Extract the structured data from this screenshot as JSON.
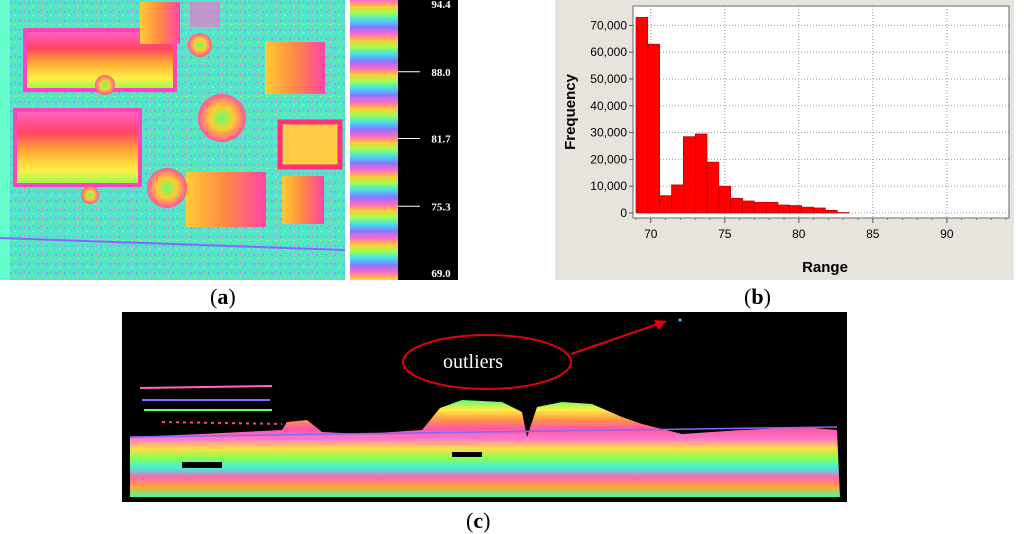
{
  "panel_a": {
    "caption_letter": "a",
    "legend_ticks": [
      "94.4",
      "88.0",
      "81.7",
      "75.3",
      "69.0"
    ],
    "legend_values": [
      94.4,
      88.0,
      81.7,
      75.3,
      69.0
    ]
  },
  "panel_b": {
    "caption_letter": "b"
  },
  "panel_c": {
    "caption_letter": "c",
    "annotation": "outliers"
  },
  "colors": {
    "bar": "#ff0000",
    "bar_stroke": "#b00000",
    "annotation": "#e3000f"
  },
  "chart_data": {
    "type": "bar",
    "xlabel": "Range",
    "ylabel": "Frequency",
    "xlim": [
      68.8,
      94.2
    ],
    "ylim": [
      0,
      75000
    ],
    "x_ticks": [
      70,
      75,
      80,
      85,
      90
    ],
    "x_tick_labels": [
      "70",
      "75",
      "80",
      "85",
      "90"
    ],
    "y_ticks": [
      0,
      10000,
      20000,
      30000,
      40000,
      50000,
      60000,
      70000
    ],
    "y_tick_labels": [
      "0",
      "10,000",
      "20,000",
      "30,000",
      "40,000",
      "50,000",
      "60,000",
      "70,000"
    ],
    "grid": true,
    "bin_width": 0.8,
    "bins_left": [
      69.0,
      69.8,
      70.6,
      71.4,
      72.2,
      73.0,
      73.8,
      74.6,
      75.4,
      76.2,
      77.0,
      77.8,
      78.6,
      79.4,
      80.2,
      81.0,
      81.8,
      82.6
    ],
    "values": [
      73000,
      63000,
      6500,
      10500,
      28500,
      29500,
      19000,
      10000,
      5500,
      4500,
      4000,
      4000,
      3000,
      2800,
      2200,
      1900,
      1000,
      200
    ]
  }
}
